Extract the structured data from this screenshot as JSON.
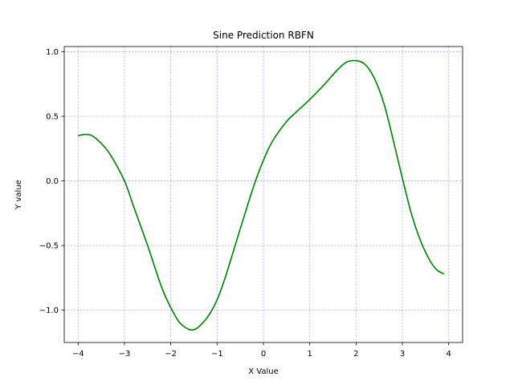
{
  "chart_data": {
    "type": "line",
    "title": "Sine Prediction RBFN",
    "xlabel": "X Value",
    "ylabel": "Y value",
    "xlim": [
      -4.3,
      4.3
    ],
    "ylim": [
      -1.25,
      1.04
    ],
    "xticks": [
      -4,
      -3,
      -2,
      -1,
      0,
      1,
      2,
      3,
      4
    ],
    "xtick_labels": [
      "−4",
      "−3",
      "−2",
      "−1",
      "0",
      "1",
      "2",
      "3",
      "4"
    ],
    "yticks": [
      -1.0,
      -0.5,
      0.0,
      0.5,
      1.0
    ],
    "ytick_labels": [
      "−1.0",
      "−0.5",
      "0.0",
      "0.5",
      "1.0"
    ],
    "grid": true,
    "grid_color": "#0000ff",
    "series": [
      {
        "color": "#008000",
        "x": [
          -4.0,
          -3.85,
          -3.7,
          -3.5,
          -3.3,
          -3.0,
          -2.8,
          -2.5,
          -2.2,
          -2.0,
          -1.8,
          -1.6,
          -1.5,
          -1.4,
          -1.2,
          -1.0,
          -0.8,
          -0.5,
          -0.2,
          0.0,
          0.2,
          0.5,
          0.7,
          1.0,
          1.3,
          1.6,
          1.8,
          2.0,
          2.2,
          2.4,
          2.6,
          2.8,
          3.0,
          3.2,
          3.4,
          3.6,
          3.75,
          3.9
        ],
        "y": [
          0.35,
          0.36,
          0.35,
          0.29,
          0.2,
          0.0,
          -0.2,
          -0.5,
          -0.82,
          -0.98,
          -1.1,
          -1.15,
          -1.15,
          -1.13,
          -1.05,
          -0.92,
          -0.72,
          -0.37,
          -0.03,
          0.16,
          0.31,
          0.46,
          0.53,
          0.63,
          0.74,
          0.86,
          0.92,
          0.93,
          0.9,
          0.79,
          0.6,
          0.32,
          0.02,
          -0.26,
          -0.47,
          -0.62,
          -0.69,
          -0.72
        ]
      }
    ]
  }
}
